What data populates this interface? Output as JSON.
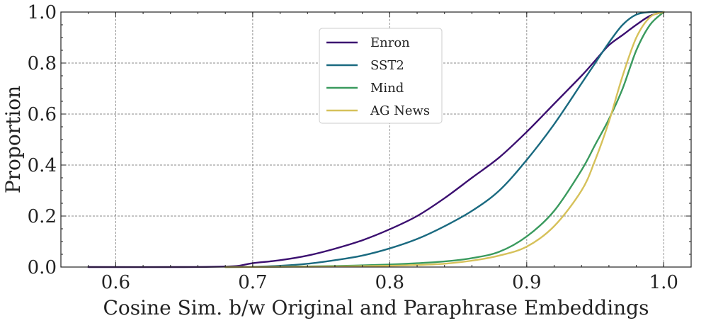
{
  "chart_data": {
    "type": "line",
    "title": "",
    "xlabel": "Cosine Sim. b/w Original and Paraphrase Embeddings",
    "ylabel": "Proportion",
    "xlim": [
      0.56,
      1.02
    ],
    "ylim": [
      0.0,
      1.0
    ],
    "xticks": [
      0.6,
      0.7,
      0.8,
      0.9,
      1.0
    ],
    "xtick_labels": [
      "0.6",
      "0.7",
      "0.8",
      "0.9",
      "1.0"
    ],
    "yticks": [
      0.0,
      0.2,
      0.4,
      0.6,
      0.8,
      1.0
    ],
    "ytick_labels": [
      "0.0",
      "0.2",
      "0.4",
      "0.6",
      "0.8",
      "1.0"
    ],
    "grid": true,
    "legend_position": "upper-center",
    "series": [
      {
        "name": "Enron",
        "color": "#3b0f70",
        "x": [
          0.58,
          0.65,
          0.68,
          0.69,
          0.7,
          0.72,
          0.74,
          0.76,
          0.78,
          0.8,
          0.82,
          0.84,
          0.86,
          0.88,
          0.9,
          0.92,
          0.94,
          0.95,
          0.96,
          0.97,
          0.98,
          0.99,
          1.0
        ],
        "values": [
          0.0,
          0.0,
          0.002,
          0.005,
          0.015,
          0.027,
          0.045,
          0.072,
          0.105,
          0.148,
          0.2,
          0.27,
          0.35,
          0.43,
          0.53,
          0.64,
          0.75,
          0.81,
          0.87,
          0.91,
          0.95,
          0.985,
          1.0
        ]
      },
      {
        "name": "SST2",
        "color": "#1a6a80",
        "x": [
          0.68,
          0.7,
          0.72,
          0.74,
          0.76,
          0.78,
          0.8,
          0.82,
          0.84,
          0.86,
          0.88,
          0.9,
          0.92,
          0.94,
          0.95,
          0.96,
          0.97,
          0.98,
          0.99,
          1.0
        ],
        "values": [
          0.0,
          0.001,
          0.005,
          0.013,
          0.027,
          0.045,
          0.073,
          0.11,
          0.16,
          0.22,
          0.3,
          0.42,
          0.56,
          0.72,
          0.8,
          0.88,
          0.95,
          0.99,
          1.0,
          1.0
        ]
      },
      {
        "name": "Mind",
        "color": "#3a9a5e",
        "x": [
          0.68,
          0.72,
          0.76,
          0.8,
          0.82,
          0.84,
          0.86,
          0.88,
          0.9,
          0.92,
          0.94,
          0.95,
          0.96,
          0.97,
          0.98,
          0.99,
          1.0
        ],
        "values": [
          0.0,
          0.001,
          0.004,
          0.01,
          0.015,
          0.022,
          0.035,
          0.06,
          0.12,
          0.22,
          0.38,
          0.48,
          0.58,
          0.7,
          0.85,
          0.95,
          1.0
        ]
      },
      {
        "name": "AG News",
        "color": "#d6c15a",
        "x": [
          0.68,
          0.72,
          0.76,
          0.8,
          0.82,
          0.84,
          0.86,
          0.88,
          0.9,
          0.92,
          0.94,
          0.95,
          0.96,
          0.97,
          0.98,
          0.99,
          1.0
        ],
        "values": [
          0.0,
          0.001,
          0.002,
          0.005,
          0.008,
          0.013,
          0.025,
          0.045,
          0.08,
          0.16,
          0.3,
          0.42,
          0.57,
          0.75,
          0.9,
          0.98,
          1.0
        ]
      }
    ]
  }
}
